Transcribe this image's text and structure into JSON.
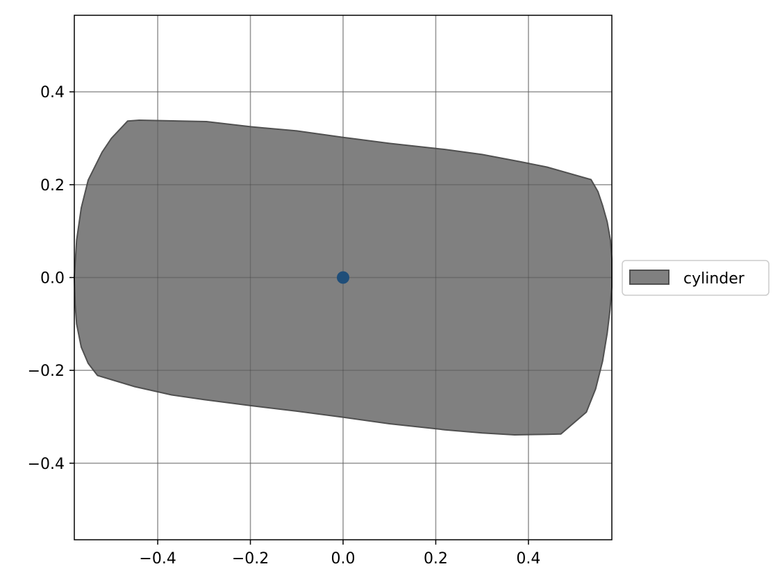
{
  "chart_data": {
    "type": "area",
    "title": "",
    "xlabel": "",
    "ylabel": "",
    "xlim": [
      -0.58,
      0.58
    ],
    "ylim": [
      -0.565,
      0.565
    ],
    "grid": true,
    "legend_placement": "center-left-outside-right",
    "x_ticks": [
      -0.4,
      -0.2,
      0.0,
      0.2,
      0.4
    ],
    "x_tick_labels": [
      "−0.4",
      "−0.2",
      "0.0",
      "0.2",
      "0.4"
    ],
    "y_ticks": [
      0.4,
      0.2,
      0.0,
      -0.2,
      -0.4
    ],
    "y_tick_labels": [
      "0.4",
      "0.2",
      "0.0",
      "−0.2",
      "−0.4"
    ],
    "series": [
      {
        "name": "cylinder",
        "color": "#808080",
        "edge_color": "#505050",
        "polygon": [
          [
            -0.465,
            0.337
          ],
          [
            -0.44,
            0.339
          ],
          [
            -0.295,
            0.336
          ],
          [
            -0.2,
            0.325
          ],
          [
            -0.1,
            0.316
          ],
          [
            0.0,
            0.302
          ],
          [
            0.1,
            0.289
          ],
          [
            0.22,
            0.276
          ],
          [
            0.3,
            0.265
          ],
          [
            0.38,
            0.25
          ],
          [
            0.44,
            0.238
          ],
          [
            0.535,
            0.211
          ],
          [
            0.55,
            0.185
          ],
          [
            0.56,
            0.155
          ],
          [
            0.57,
            0.12
          ],
          [
            0.577,
            0.08
          ],
          [
            0.58,
            0.04
          ],
          [
            0.58,
            0.0
          ],
          [
            0.58,
            -0.02
          ],
          [
            0.576,
            -0.07
          ],
          [
            0.57,
            -0.12
          ],
          [
            0.56,
            -0.18
          ],
          [
            0.545,
            -0.24
          ],
          [
            0.525,
            -0.29
          ],
          [
            0.47,
            -0.337
          ],
          [
            0.44,
            -0.338
          ],
          [
            0.37,
            -0.339
          ],
          [
            0.3,
            -0.335
          ],
          [
            0.22,
            -0.328
          ],
          [
            0.1,
            -0.315
          ],
          [
            0.0,
            -0.301
          ],
          [
            -0.1,
            -0.288
          ],
          [
            -0.2,
            -0.276
          ],
          [
            -0.3,
            -0.263
          ],
          [
            -0.37,
            -0.253
          ],
          [
            -0.45,
            -0.235
          ],
          [
            -0.53,
            -0.211
          ],
          [
            -0.55,
            -0.185
          ],
          [
            -0.565,
            -0.15
          ],
          [
            -0.575,
            -0.1
          ],
          [
            -0.578,
            -0.06
          ],
          [
            -0.58,
            0.0
          ],
          [
            -0.575,
            0.08
          ],
          [
            -0.565,
            0.15
          ],
          [
            -0.55,
            0.21
          ],
          [
            -0.52,
            0.27
          ],
          [
            -0.5,
            0.3
          ]
        ]
      }
    ],
    "points": [
      {
        "x": 0.0,
        "y": 0.0,
        "color": "#1f4e79"
      }
    ],
    "legend": [
      {
        "label": "cylinder",
        "color": "#808080",
        "edge_color": "#505050"
      }
    ]
  }
}
